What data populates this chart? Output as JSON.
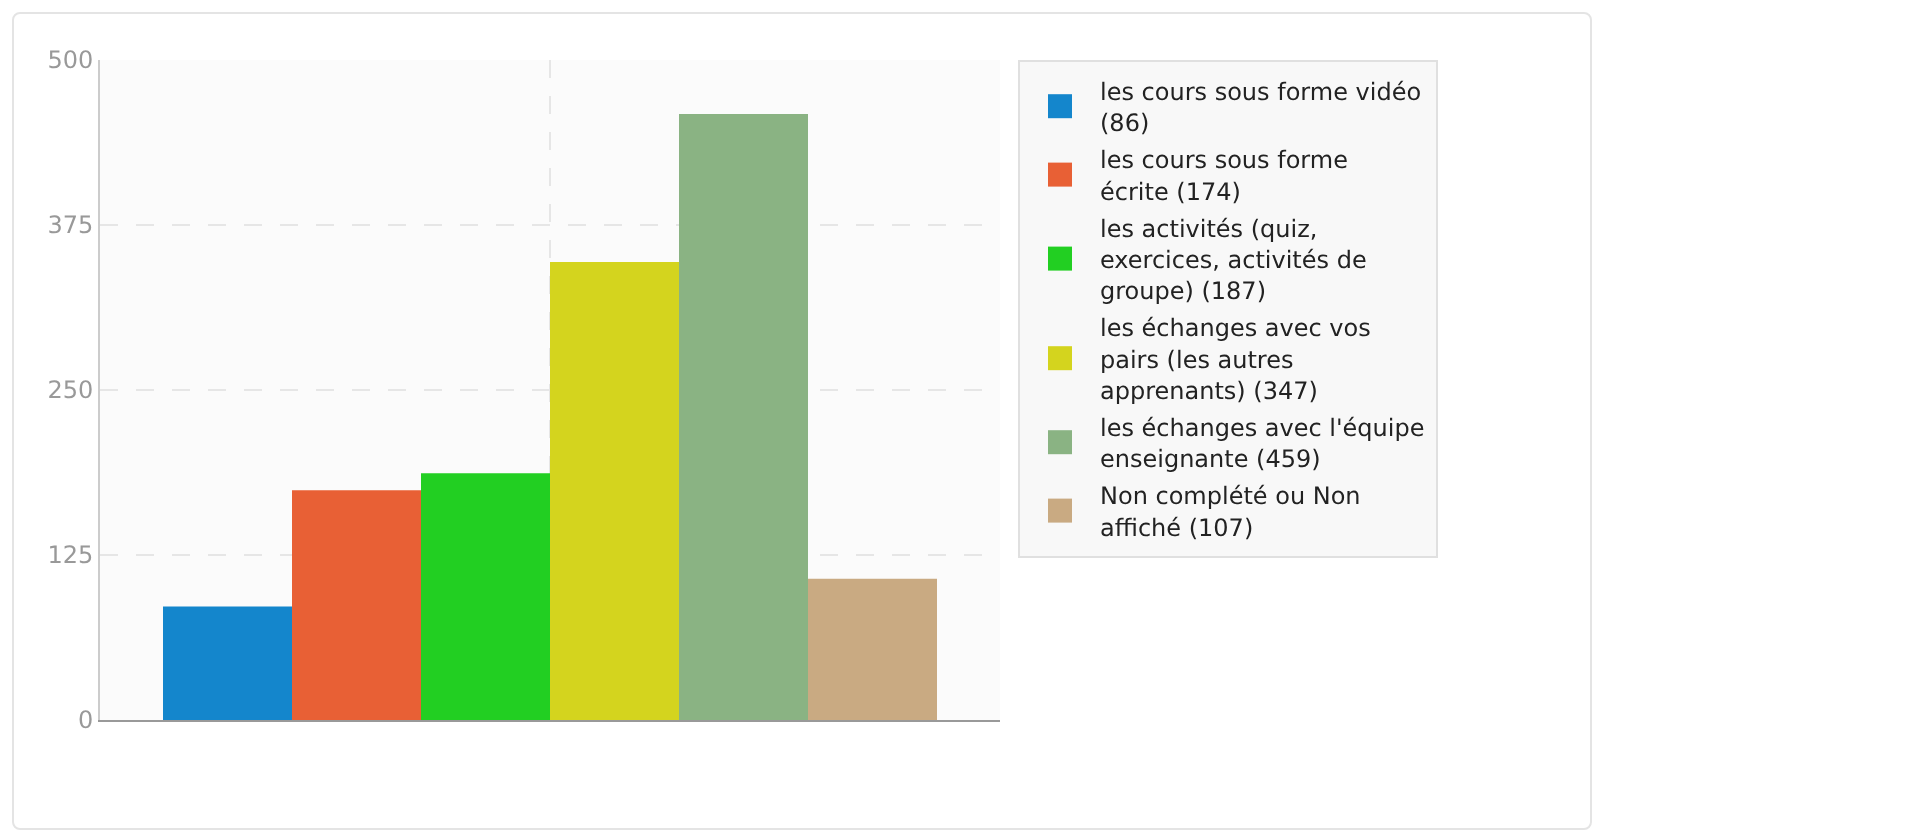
{
  "chart_data": {
    "type": "bar",
    "categories": [
      null
    ],
    "series": [
      {
        "name": "les cours sous forme vidéo (86)",
        "color": "#1486cc",
        "values": [
          86
        ]
      },
      {
        "name": "les cours sous forme écrite (174)",
        "color": "#e86035",
        "values": [
          174
        ]
      },
      {
        "name": "les activités (quiz, exercices, activités de groupe) (187)",
        "color": "#22cf22",
        "values": [
          187
        ]
      },
      {
        "name": "les échanges avec vos pairs (les autres apprenants) (347)",
        "color": "#d4d41e",
        "values": [
          347
        ]
      },
      {
        "name": "les échanges avec l'équipe enseignante (459)",
        "color": "#8ab383",
        "values": [
          459
        ]
      },
      {
        "name": "Non complété ou Non affiché (107)",
        "color": "#c9aa82",
        "values": [
          107
        ]
      }
    ],
    "ylim": [
      0,
      500
    ],
    "yticks": [
      0,
      125,
      250,
      375,
      500
    ],
    "grid": true,
    "legend": "right"
  }
}
